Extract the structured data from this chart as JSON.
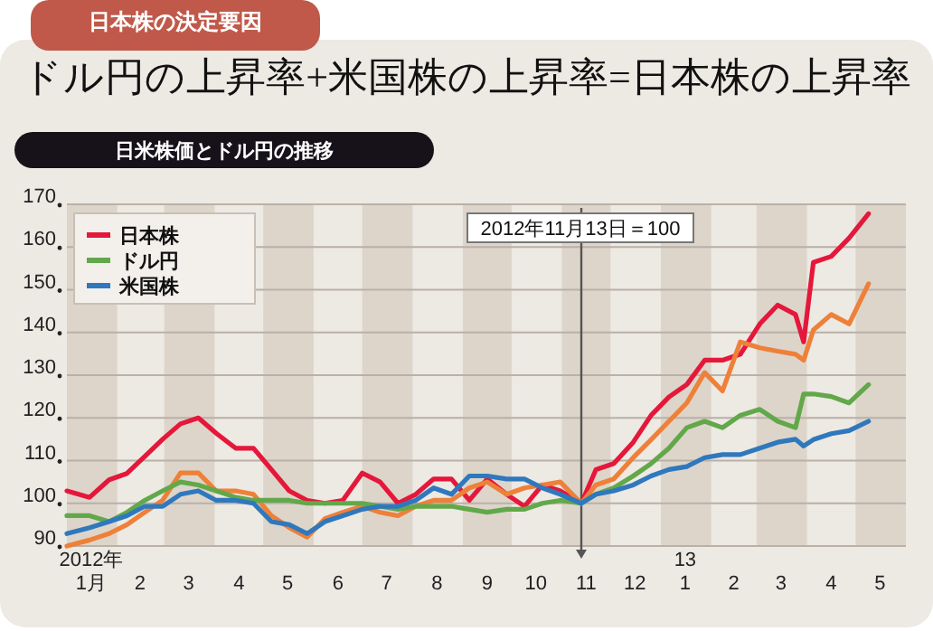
{
  "chart_data": {
    "type": "line",
    "title": "ドル円の上昇率+米国株の上昇率=日本株の上昇率",
    "subtitle": "日米株価とドル円の推移",
    "annotations": [
      "日本株の決定要因"
    ],
    "x": [
      "2012-01-01",
      "2012-01-15",
      "2012-01-27",
      "2012-02-07",
      "2012-02-18",
      "2012-02-29",
      "2012-03-11",
      "2012-03-22",
      "2012-04-02",
      "2012-04-14",
      "2012-04-25",
      "2012-05-06",
      "2012-05-17",
      "2012-05-28",
      "2012-06-08",
      "2012-06-19",
      "2012-07-01",
      "2012-07-12",
      "2012-07-23",
      "2012-08-03",
      "2012-08-14",
      "2012-08-25",
      "2012-09-05",
      "2012-09-16",
      "2012-09-28",
      "2012-10-09",
      "2012-10-20",
      "2012-10-31",
      "2012-11-13",
      "2012-11-22",
      "2012-12-03",
      "2012-12-15",
      "2012-12-26",
      "2013-01-06",
      "2013-01-17",
      "2013-01-28",
      "2013-02-08",
      "2013-02-19",
      "2013-03-03",
      "2013-03-14",
      "2013-03-25",
      "2013-03-30",
      "2013-04-05",
      "2013-04-16",
      "2013-04-27",
      "2013-05-09"
    ],
    "series": [
      {
        "name": "日本株",
        "color": "#e5173a",
        "values": [
          102.9,
          101.4,
          105.5,
          107,
          111,
          115,
          118.6,
          120,
          116.4,
          112.9,
          112.9,
          107.9,
          102.9,
          100.7,
          100,
          100.7,
          107.1,
          105,
          100,
          102.1,
          105.7,
          105.7,
          100.7,
          105.7,
          102.1,
          99.3,
          104.3,
          102.9,
          100,
          107.9,
          109.3,
          114.3,
          120.6,
          124.9,
          127.8,
          133.5,
          133.5,
          134.9,
          142,
          146.4,
          144.2,
          137.8,
          156.4,
          157.8,
          162.1,
          167.8
        ]
      },
      {
        "color": "#ee8039",
        "values": [
          90,
          91.4,
          92.9,
          95,
          97.9,
          100.7,
          107.1,
          107.1,
          102.9,
          102.9,
          102.1,
          97.1,
          94.3,
          92.1,
          96.4,
          97.9,
          99.3,
          97.9,
          97.1,
          99.3,
          100.7,
          100.7,
          103.6,
          105,
          102.1,
          103.6,
          104.3,
          105,
          100,
          104.3,
          105.7,
          110.7,
          114.9,
          119.2,
          123.5,
          130.6,
          126.3,
          137.8,
          136.4,
          135.6,
          134.9,
          133.5,
          140.6,
          144.2,
          142,
          151.4
        ]
      },
      {
        "name": "ドル円",
        "color": "#62a84a",
        "values": [
          97.1,
          97.1,
          95.7,
          97.9,
          100.7,
          102.9,
          105,
          104.3,
          102.9,
          101.4,
          100.7,
          100.7,
          100.7,
          100,
          100,
          100,
          100,
          99.3,
          98.6,
          99.3,
          99.3,
          99.3,
          98.6,
          97.9,
          98.6,
          98.6,
          100,
          100.7,
          100,
          102.1,
          103.6,
          106.4,
          109.3,
          112.9,
          117.7,
          119.2,
          117.7,
          120.6,
          122,
          119.2,
          117.7,
          125.6,
          125.6,
          125,
          123.5,
          127.8
        ]
      },
      {
        "name": "米国株",
        "color": "#2f78bd",
        "values": [
          92.9,
          94.3,
          95.7,
          97.1,
          99.3,
          99.3,
          102.1,
          102.9,
          100.7,
          100.7,
          100,
          95.7,
          95,
          92.9,
          95.7,
          97.1,
          98.6,
          99.3,
          99.3,
          100.7,
          103.6,
          102.1,
          106.4,
          106.4,
          105.7,
          105.7,
          103.6,
          102.1,
          100,
          102.1,
          102.9,
          104.3,
          106.4,
          107.9,
          108.6,
          110.7,
          111.4,
          111.4,
          112.9,
          114.3,
          115,
          113.4,
          114.9,
          116.3,
          117,
          119.2
        ]
      }
    ],
    "xlim": [
      "2012-01-01",
      "2013-06-01"
    ],
    "xticks": [
      {
        "value": "2012-01-16",
        "label": "2012年\n1月"
      },
      {
        "value": "2012-02-15",
        "label": "2"
      },
      {
        "value": "2012-03-16",
        "label": "3"
      },
      {
        "value": "2012-04-16",
        "label": "4"
      },
      {
        "value": "2012-05-16",
        "label": "5"
      },
      {
        "value": "2012-06-16",
        "label": "6"
      },
      {
        "value": "2012-07-16",
        "label": "7"
      },
      {
        "value": "2012-08-16",
        "label": "8"
      },
      {
        "value": "2012-09-16",
        "label": "9"
      },
      {
        "value": "2012-10-16",
        "label": "10"
      },
      {
        "value": "2012-11-16",
        "label": "11"
      },
      {
        "value": "2012-12-16",
        "label": "12"
      },
      {
        "value": "2013-01-16",
        "label": "13\n1"
      },
      {
        "value": "2013-02-15",
        "label": "2"
      },
      {
        "value": "2013-03-16",
        "label": "3"
      },
      {
        "value": "2013-04-16",
        "label": "4"
      },
      {
        "value": "2013-05-16",
        "label": "5"
      }
    ],
    "ylim": [
      90,
      170
    ],
    "yticks": [
      90,
      100,
      110,
      120,
      130,
      140,
      150,
      160,
      170
    ],
    "grid": "y",
    "legend": "top left",
    "bands": [
      {
        "axis": "x",
        "from": "2012-01-01",
        "to": "2012-02-01",
        "color": "#ddd5ca"
      },
      {
        "axis": "x",
        "from": "2012-03-01",
        "to": "2012-04-01",
        "color": "#ddd5ca"
      },
      {
        "axis": "x",
        "from": "2012-05-01",
        "to": "2012-06-01",
        "color": "#ddd5ca"
      },
      {
        "axis": "x",
        "from": "2012-07-01",
        "to": "2012-08-01",
        "color": "#ddd5ca"
      },
      {
        "axis": "x",
        "from": "2012-09-01",
        "to": "2012-10-01",
        "color": "#ddd5ca"
      },
      {
        "axis": "x",
        "from": "2012-11-01",
        "to": "2012-12-01",
        "color": "#ddd5ca"
      },
      {
        "axis": "x",
        "from": "2013-01-01",
        "to": "2013-02-01",
        "color": "#ddd5ca"
      },
      {
        "axis": "x",
        "from": "2013-03-01",
        "to": "2013-04-01",
        "color": "#ddd5ca"
      },
      {
        "axis": "x",
        "from": "2013-05-01",
        "to": "2013-06-01",
        "color": "#ddd5ca"
      }
    ],
    "ref_lines": [
      {
        "axis": "x",
        "value": "2012-11-13",
        "label": "2012年11月13日＝100",
        "color": "#555555"
      }
    ]
  }
}
